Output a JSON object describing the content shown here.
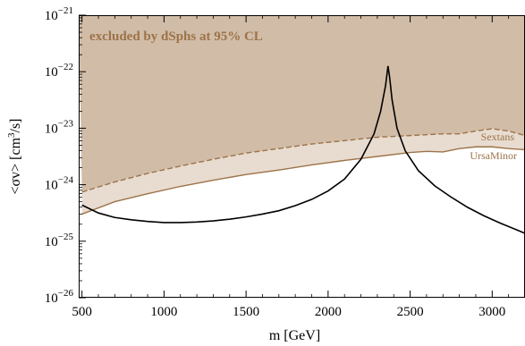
{
  "chart_data": {
    "type": "line",
    "xlabel": "m [GeV]",
    "ylabel_main": "<σv> [cm",
    "ylabel_exp": "3",
    "ylabel_tail": "/s]",
    "xlim": [
      480,
      3200
    ],
    "ylim_log10": [
      -26,
      -21
    ],
    "yscale": "log",
    "annotation": "excluded by dSphs at 95% CL",
    "x_ticks": [
      {
        "value": 500,
        "label": "500"
      },
      {
        "value": 1000,
        "label": "1000"
      },
      {
        "value": 1500,
        "label": "1500"
      },
      {
        "value": 2000,
        "label": "2000"
      },
      {
        "value": 2500,
        "label": "2500"
      },
      {
        "value": 3000,
        "label": "3000"
      }
    ],
    "y_ticks": [
      {
        "exp": -21,
        "base": "10",
        "power": "−21"
      },
      {
        "exp": -22,
        "base": "10",
        "power": "−22"
      },
      {
        "exp": -23,
        "base": "10",
        "power": "−23"
      },
      {
        "exp": -24,
        "base": "10",
        "power": "−24"
      },
      {
        "exp": -25,
        "base": "10",
        "power": "−25"
      },
      {
        "exp": -26,
        "base": "10",
        "power": "−26"
      }
    ],
    "series": [
      {
        "name": "Sextans",
        "style": "dashed",
        "color": "#9c7349",
        "points": [
          [
            500,
            -24.13
          ],
          [
            700,
            -23.95
          ],
          [
            900,
            -23.8
          ],
          [
            1100,
            -23.67
          ],
          [
            1300,
            -23.55
          ],
          [
            1500,
            -23.44
          ],
          [
            1700,
            -23.36
          ],
          [
            1900,
            -23.28
          ],
          [
            2100,
            -23.22
          ],
          [
            2300,
            -23.16
          ],
          [
            2500,
            -23.13
          ],
          [
            2700,
            -23.1
          ],
          [
            2800,
            -23.1
          ],
          [
            2900,
            -23.05
          ],
          [
            3000,
            -23.01
          ],
          [
            3100,
            -23.05
          ],
          [
            3200,
            -23.13
          ]
        ]
      },
      {
        "name": "UrsaMinor",
        "style": "solid",
        "color": "#9c7349",
        "points": [
          [
            500,
            -24.52
          ],
          [
            700,
            -24.3
          ],
          [
            900,
            -24.16
          ],
          [
            1100,
            -24.03
          ],
          [
            1300,
            -23.92
          ],
          [
            1500,
            -23.82
          ],
          [
            1700,
            -23.74
          ],
          [
            1900,
            -23.65
          ],
          [
            2100,
            -23.57
          ],
          [
            2300,
            -23.5
          ],
          [
            2500,
            -23.43
          ],
          [
            2600,
            -23.41
          ],
          [
            2700,
            -23.42
          ],
          [
            2800,
            -23.36
          ],
          [
            2900,
            -23.33
          ],
          [
            3000,
            -23.33
          ],
          [
            3100,
            -23.36
          ],
          [
            3200,
            -23.38
          ]
        ]
      },
      {
        "name": "",
        "style": "solid",
        "color": "#000000",
        "points": [
          [
            500,
            -24.36
          ],
          [
            600,
            -24.5
          ],
          [
            700,
            -24.58
          ],
          [
            800,
            -24.62
          ],
          [
            900,
            -24.65
          ],
          [
            1000,
            -24.67
          ],
          [
            1100,
            -24.67
          ],
          [
            1200,
            -24.66
          ],
          [
            1300,
            -24.64
          ],
          [
            1400,
            -24.61
          ],
          [
            1500,
            -24.57
          ],
          [
            1600,
            -24.52
          ],
          [
            1700,
            -24.46
          ],
          [
            1800,
            -24.37
          ],
          [
            1900,
            -24.26
          ],
          [
            2000,
            -24.11
          ],
          [
            2100,
            -23.9
          ],
          [
            2200,
            -23.55
          ],
          [
            2280,
            -23.1
          ],
          [
            2320,
            -22.7
          ],
          [
            2350,
            -22.25
          ],
          [
            2365,
            -21.9
          ],
          [
            2375,
            -22.1
          ],
          [
            2390,
            -22.5
          ],
          [
            2420,
            -23.0
          ],
          [
            2470,
            -23.4
          ],
          [
            2550,
            -23.75
          ],
          [
            2650,
            -24.02
          ],
          [
            2750,
            -24.22
          ],
          [
            2850,
            -24.4
          ],
          [
            2950,
            -24.55
          ],
          [
            3050,
            -24.68
          ],
          [
            3150,
            -24.8
          ],
          [
            3200,
            -24.86
          ]
        ]
      }
    ],
    "colors": {
      "excluded_fill": "#d1bca7",
      "band_fill": "#e8dcd0",
      "boundary": "#9c7349",
      "model_curve": "#000000",
      "frame": "#000000"
    }
  }
}
